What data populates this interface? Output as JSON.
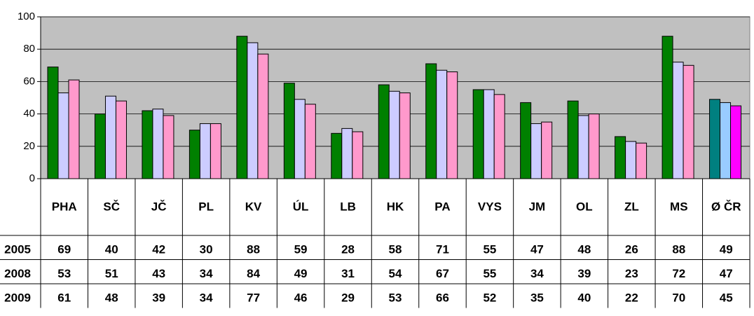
{
  "chart_data": {
    "type": "bar",
    "categories": [
      "PHA",
      "SČ",
      "JČ",
      "PL",
      "KV",
      "ÚL",
      "LB",
      "HK",
      "PA",
      "VYS",
      "JM",
      "OL",
      "ZL",
      "MS",
      "Ø ČR"
    ],
    "series": [
      {
        "name": "2005",
        "color": "#008000",
        "last_color": "#008080",
        "values": [
          69,
          40,
          42,
          30,
          88,
          59,
          28,
          58,
          71,
          55,
          47,
          48,
          26,
          88,
          49
        ]
      },
      {
        "name": "2008",
        "color": "#ccccff",
        "last_color": "#99ccff",
        "values": [
          53,
          51,
          43,
          34,
          84,
          49,
          31,
          54,
          67,
          55,
          34,
          39,
          23,
          72,
          47
        ]
      },
      {
        "name": "2009",
        "color": "#ff99cc",
        "last_color": "#ff00ff",
        "values": [
          61,
          48,
          39,
          34,
          77,
          46,
          29,
          53,
          66,
          52,
          35,
          40,
          22,
          70,
          45
        ]
      }
    ],
    "ylim": [
      0,
      100
    ],
    "yticks": [
      0,
      20,
      40,
      60,
      80,
      100
    ],
    "grid": true,
    "data_table": true
  }
}
